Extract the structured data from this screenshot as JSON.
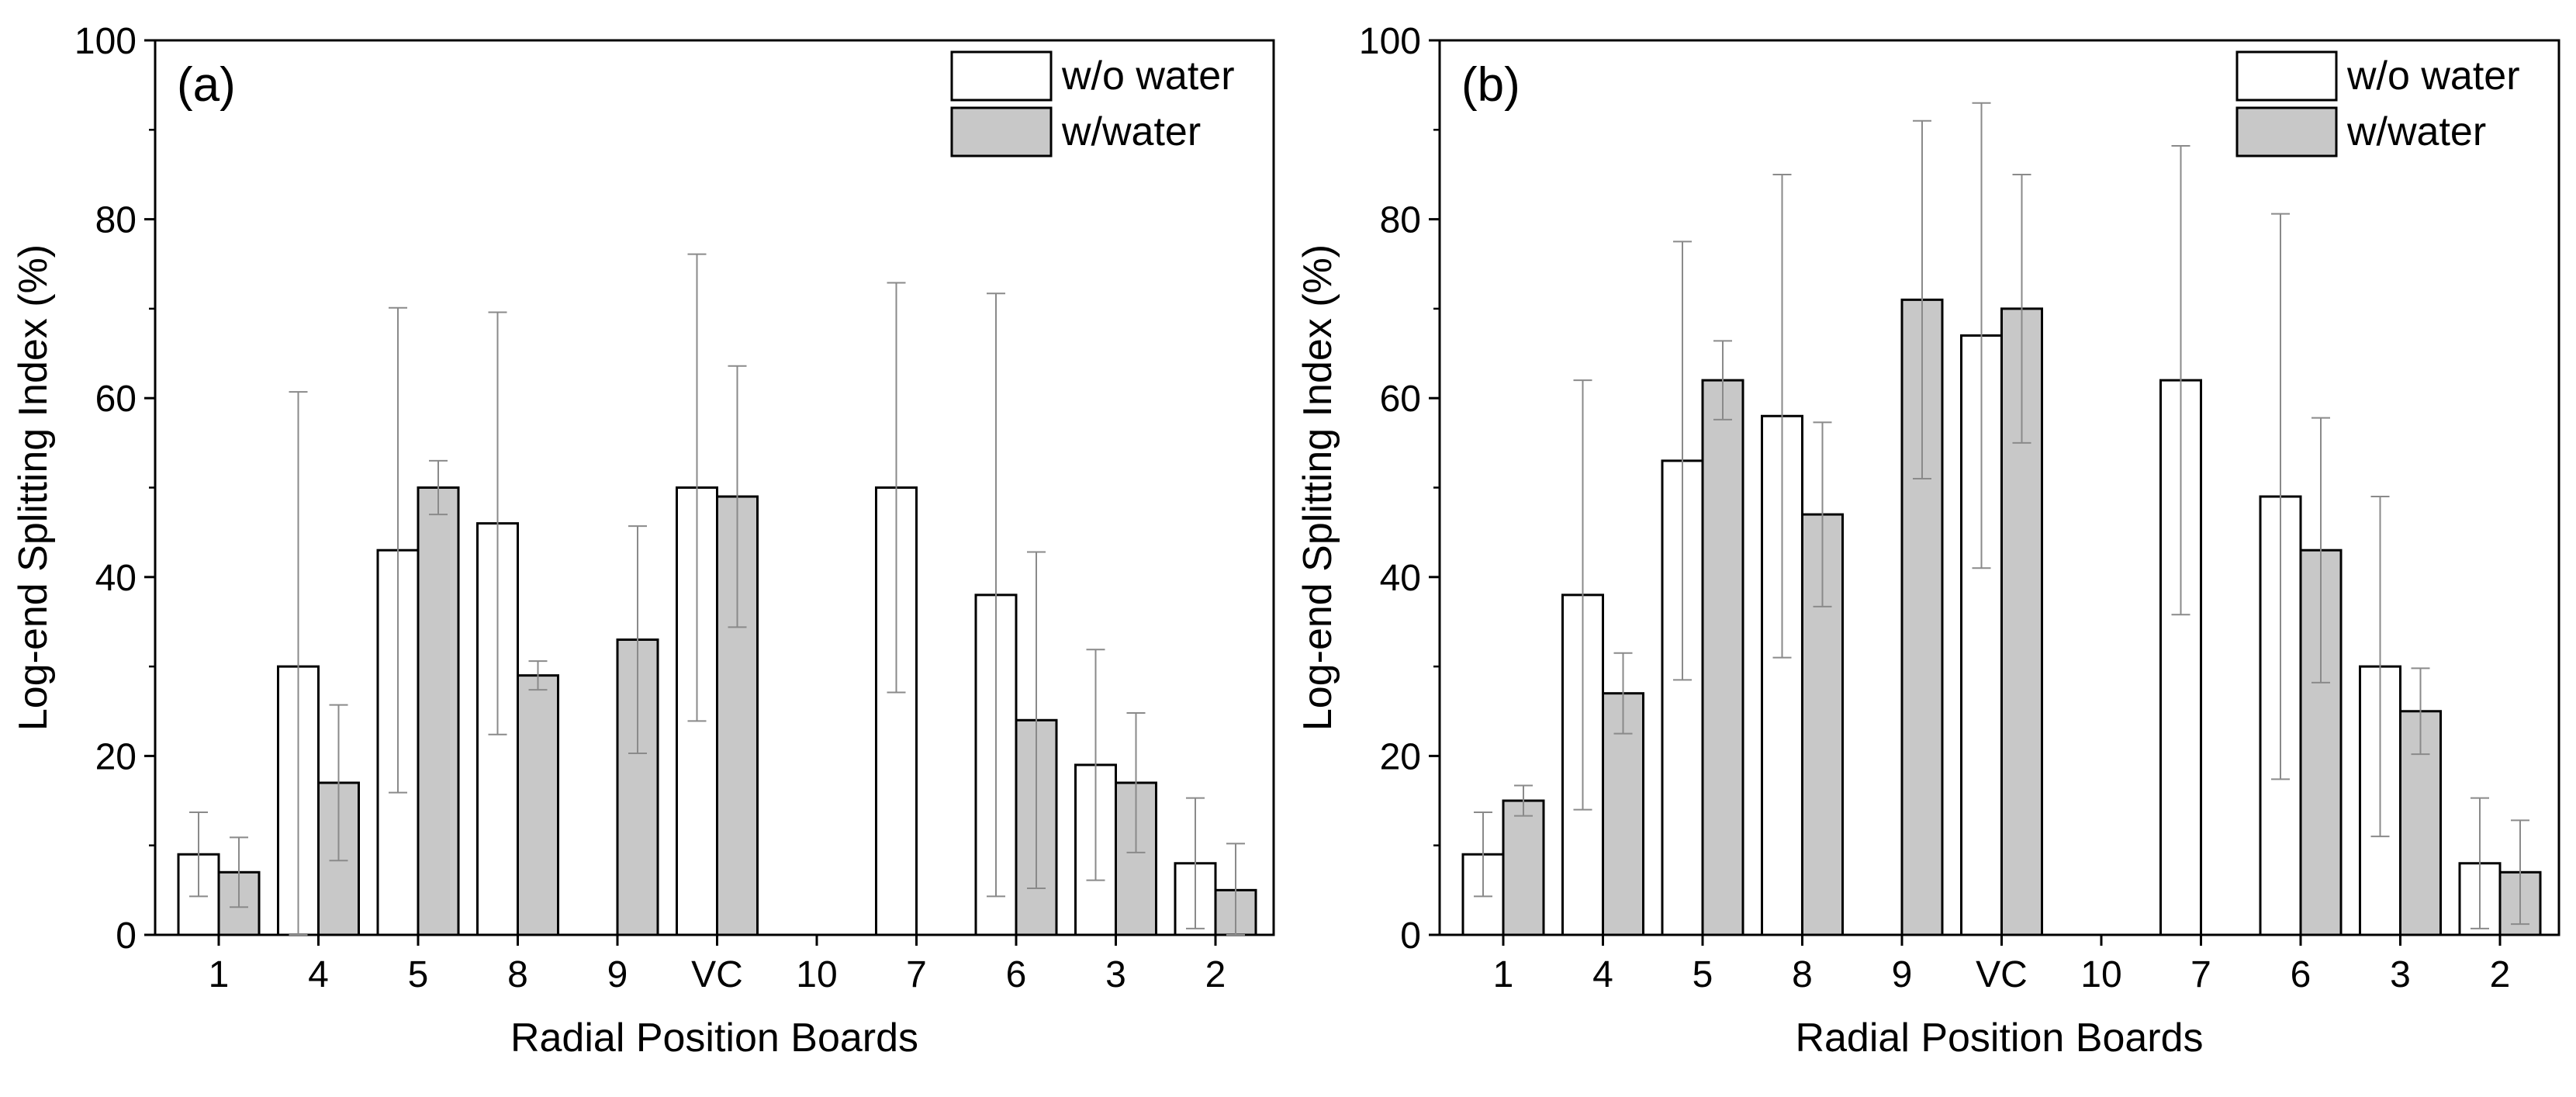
{
  "chart_data": [
    {
      "type": "bar",
      "panel_label": "(a)",
      "title": "",
      "xlabel": "Radial Position Boards",
      "ylabel": "Log-end Splitting Index (%)",
      "ylim": [
        0,
        100
      ],
      "yticks": [
        "0",
        "20",
        "40",
        "60",
        "80",
        "100"
      ],
      "categories": [
        "1",
        "4",
        "5",
        "8",
        "9",
        "VC",
        "10",
        "7",
        "6",
        "3",
        "2"
      ],
      "legend_position": "top-right",
      "series": [
        {
          "name": "w/o water",
          "color": "#ffffff",
          "values": [
            9,
            30,
            43,
            46,
            null,
            50,
            null,
            50,
            38,
            19,
            8
          ],
          "errors": [
            4.7,
            30.7,
            27.1,
            23.6,
            null,
            26.1,
            null,
            22.9,
            33.7,
            12.9,
            7.3
          ]
        },
        {
          "name": "w/water",
          "color": "#c8c8c8",
          "values": [
            7,
            17,
            50,
            29,
            33,
            49,
            null,
            null,
            24,
            17,
            5
          ],
          "errors": [
            3.9,
            8.7,
            3,
            1.6,
            12.7,
            14.6,
            null,
            null,
            18.8,
            7.8,
            5.2
          ]
        }
      ]
    },
    {
      "type": "bar",
      "panel_label": "(b)",
      "title": "",
      "xlabel": "Radial Position Boards",
      "ylabel": "Log-end Splitting Index (%)",
      "ylim": [
        0,
        100
      ],
      "yticks": [
        "0",
        "20",
        "40",
        "60",
        "80",
        "100"
      ],
      "categories": [
        "1",
        "4",
        "5",
        "8",
        "9",
        "VC",
        "10",
        "7",
        "6",
        "3",
        "2"
      ],
      "legend_position": "top-right",
      "series": [
        {
          "name": "w/o water",
          "color": "#ffffff",
          "values": [
            9,
            38,
            53,
            58,
            null,
            67,
            null,
            62,
            49,
            30,
            8
          ],
          "errors": [
            4.7,
            24,
            24.5,
            27,
            null,
            26,
            null,
            26.2,
            31.6,
            19,
            7.3
          ]
        },
        {
          "name": "w/water",
          "color": "#c8c8c8",
          "values": [
            15,
            27,
            62,
            47,
            71,
            70,
            null,
            null,
            43,
            25,
            7
          ],
          "errors": [
            1.7,
            4.5,
            4.4,
            10.3,
            20,
            15,
            null,
            null,
            14.8,
            4.8,
            5.8
          ]
        }
      ]
    }
  ]
}
